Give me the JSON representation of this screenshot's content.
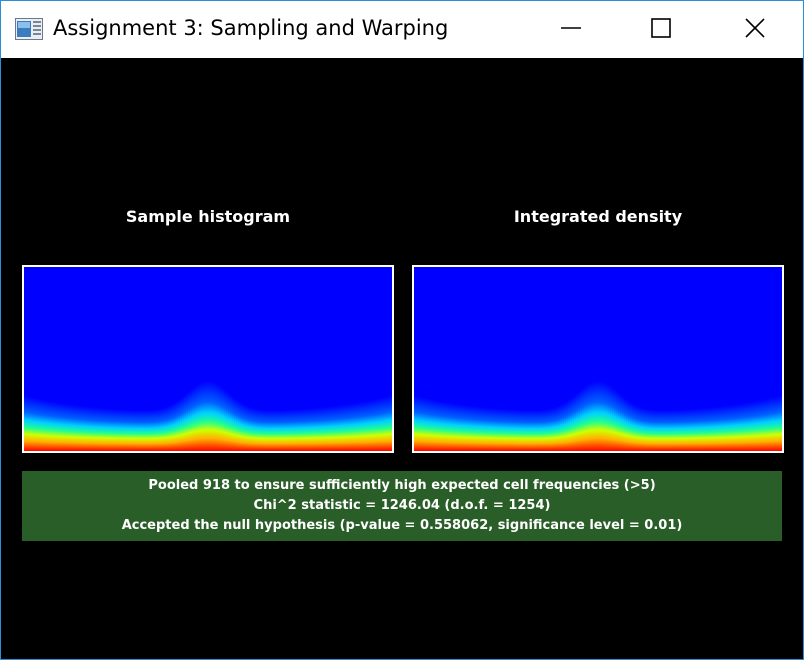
{
  "window": {
    "title": "Assignment 3: Sampling and Warping",
    "controls": {
      "minimize": "minimize",
      "maximize": "maximize",
      "close": "close"
    }
  },
  "panels": [
    {
      "heading": "Sample histogram"
    },
    {
      "heading": "Integrated density"
    }
  ],
  "stats": {
    "line1": "Pooled 918 to ensure sufficiently high expected cell frequencies (>5)",
    "line2": "Chi^2 statistic = 1246.04 (d.o.f. = 1254)",
    "line3": "Accepted the null hypothesis (p-value = 0.558062, significance level = 0.01)",
    "background": "#2a5e28"
  },
  "colors": {
    "window_border": "#2b8fd6",
    "canvas": "#000000",
    "colormap_low": "#0000ff",
    "colormap_high": "#ff0000"
  }
}
